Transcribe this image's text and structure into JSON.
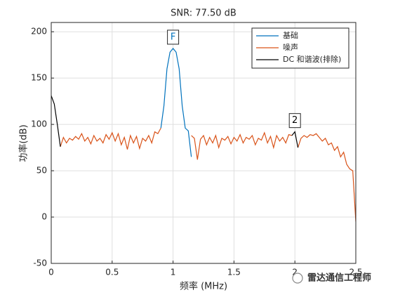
{
  "chart_data": {
    "type": "line",
    "title": "SNR:  77.50 dB",
    "x_label": "频率 (MHz)",
    "y_label": "功率(dB)",
    "xlim": [
      0,
      2.5
    ],
    "xticks": [
      0,
      0.5,
      1,
      1.5,
      2,
      2.5
    ],
    "ylim": [
      -50,
      210
    ],
    "yticks": [
      -50,
      0,
      50,
      100,
      150,
      200
    ],
    "grid": true,
    "legend_position": "upper-right",
    "series": [
      {
        "name": "基础",
        "color": "#0072bd",
        "x": [
          0.9,
          0.925,
          0.95,
          0.975,
          1.0,
          1.025,
          1.05,
          1.075,
          1.1,
          1.125,
          1.15
        ],
        "values": [
          96,
          120,
          160,
          178,
          182,
          178,
          160,
          120,
          96,
          93,
          65
        ]
      },
      {
        "name": "噪声",
        "color": "#d95319",
        "x": [
          0.075,
          0.1,
          0.125,
          0.15,
          0.175,
          0.2,
          0.225,
          0.25,
          0.275,
          0.3,
          0.325,
          0.35,
          0.375,
          0.4,
          0.425,
          0.45,
          0.475,
          0.5,
          0.525,
          0.55,
          0.575,
          0.6,
          0.625,
          0.65,
          0.675,
          0.7,
          0.725,
          0.75,
          0.775,
          0.8,
          0.825,
          0.85,
          0.875,
          0.9,
          1.0,
          1.15,
          1.175,
          1.2,
          1.225,
          1.25,
          1.275,
          1.3,
          1.325,
          1.35,
          1.375,
          1.4,
          1.425,
          1.45,
          1.475,
          1.5,
          1.525,
          1.55,
          1.575,
          1.6,
          1.625,
          1.65,
          1.675,
          1.7,
          1.725,
          1.75,
          1.775,
          1.8,
          1.825,
          1.85,
          1.875,
          1.9,
          1.925,
          1.95,
          1.975,
          2.0,
          2.025,
          2.05,
          2.075,
          2.1,
          2.125,
          2.15,
          2.175,
          2.2,
          2.225,
          2.25,
          2.275,
          2.3,
          2.325,
          2.35,
          2.375,
          2.4,
          2.425,
          2.45,
          2.475,
          2.5
        ],
        "values": [
          76,
          86,
          80,
          85,
          83,
          87,
          84,
          90,
          82,
          86,
          79,
          88,
          82,
          85,
          80,
          89,
          84,
          91,
          82,
          90,
          78,
          86,
          73,
          88,
          80,
          87,
          74,
          85,
          82,
          88,
          80,
          92,
          90,
          96,
          null,
          88,
          85,
          62,
          84,
          88,
          78,
          86,
          80,
          88,
          75,
          85,
          83,
          87,
          79,
          86,
          82,
          89,
          80,
          86,
          84,
          88,
          78,
          85,
          83,
          91,
          80,
          87,
          75,
          88,
          82,
          86,
          80,
          89,
          88,
          null,
          75,
          85,
          88,
          86,
          89,
          88,
          90,
          86,
          82,
          85,
          78,
          80,
          72,
          76,
          65,
          70,
          57,
          52,
          50,
          -5
        ]
      },
      {
        "name": "DC 和谐波(排除)",
        "color": "#000000",
        "x": [
          0,
          0.025,
          0.05,
          0.075,
          1.0,
          1.975,
          2.0,
          2.025
        ],
        "values": [
          131,
          122,
          100,
          76,
          null,
          88,
          92,
          75
        ]
      }
    ],
    "annotations": [
      {
        "label": "F"
      },
      {
        "label": "2"
      }
    ],
    "watermark": "雷达通信工程师"
  }
}
